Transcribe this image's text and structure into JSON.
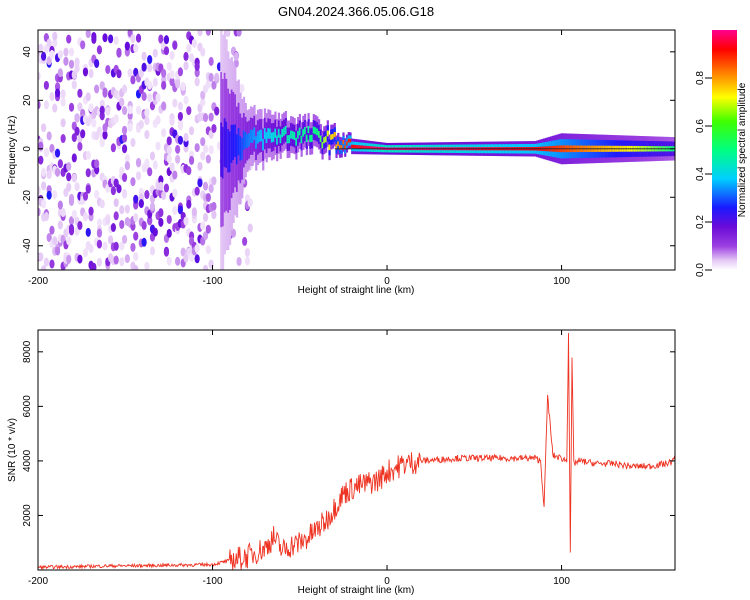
{
  "title": "GN04.2024.366.05.06.G18",
  "chart_data": [
    {
      "type": "heatmap",
      "xlabel": "Height of straight line (km)",
      "ylabel": "Frequency (Hz)",
      "xlim": [
        -200,
        165
      ],
      "ylim": [
        -50,
        49
      ],
      "xticks": [
        -200,
        -100,
        0,
        100
      ],
      "yticks": [
        -40,
        -20,
        0,
        20,
        40
      ],
      "colorbar": {
        "label": "Normalized spectral amplitude",
        "range": [
          0,
          1
        ],
        "ticks": [
          "0.0",
          "0.2",
          "0.4",
          "0.6",
          "0.8"
        ],
        "colormap": [
          "#ffffff",
          "#e4c8f5",
          "#9b3fe0",
          "#6a0bd8",
          "#1a1aff",
          "#00cfff",
          "#00ff80",
          "#ffff00",
          "#ff8000",
          "#ff0000",
          "#ff0090"
        ]
      },
      "description_points": [
        {
          "x": -200,
          "f_center": 0,
          "spread": 49,
          "amp": 0.28
        },
        {
          "x": -100,
          "f_center": 0,
          "spread": 40,
          "amp": 0.3
        },
        {
          "x": -80,
          "f_center": 3,
          "spread": 8,
          "amp": 0.45
        },
        {
          "x": -60,
          "f_center": 6,
          "spread": 5,
          "amp": 0.55
        },
        {
          "x": -40,
          "f_center": 5,
          "spread": 4,
          "amp": 0.6
        },
        {
          "x": -20,
          "f_center": 1,
          "spread": 2,
          "amp": 0.9
        },
        {
          "x": 0,
          "f_center": 0,
          "spread": 1.5,
          "amp": 1.0
        },
        {
          "x": 85,
          "f_center": 0,
          "spread": 2,
          "amp": 0.9
        },
        {
          "x": 100,
          "f_center": 0,
          "spread": 4,
          "amp": 0.85
        },
        {
          "x": 165,
          "f_center": 0,
          "spread": 3,
          "amp": 0.6
        }
      ]
    },
    {
      "type": "line",
      "xlabel": "Height of straight line (km)",
      "ylabel": "SNR (10 * v/v)",
      "xlim": [
        -200,
        165
      ],
      "ylim": [
        0,
        8800
      ],
      "xticks": [
        -200,
        -100,
        0,
        100
      ],
      "yticks": [
        2000,
        4000,
        6000,
        8000
      ],
      "series": [
        {
          "color": "#ee3322",
          "x": [
            -200,
            -180,
            -160,
            -140,
            -120,
            -100,
            -90,
            -80,
            -70,
            -65,
            -60,
            -55,
            -50,
            -45,
            -40,
            -35,
            -30,
            -25,
            -20,
            -15,
            -10,
            -5,
            0,
            10,
            20,
            30,
            40,
            50,
            60,
            70,
            80,
            85,
            88,
            90,
            92,
            95,
            100,
            103,
            104,
            105,
            106,
            107,
            110,
            120,
            130,
            140,
            150,
            160,
            165
          ],
          "y": [
            100,
            120,
            150,
            160,
            180,
            200,
            350,
            500,
            800,
            1200,
            700,
            900,
            1000,
            1200,
            1500,
            1800,
            2300,
            2800,
            3000,
            3100,
            3200,
            3300,
            3600,
            3900,
            4000,
            4050,
            4100,
            4100,
            4100,
            4100,
            4100,
            4100,
            4000,
            2300,
            6400,
            4200,
            4100,
            4000,
            8800,
            700,
            7800,
            3900,
            4000,
            3900,
            3900,
            3800,
            3800,
            3900,
            4050
          ]
        }
      ]
    }
  ]
}
